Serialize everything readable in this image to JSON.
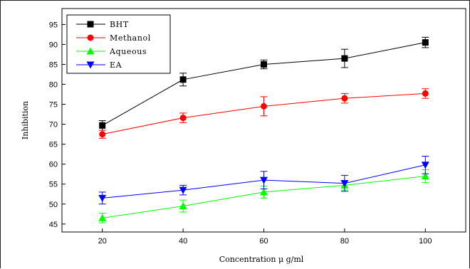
{
  "chart_data": {
    "type": "line",
    "title": "",
    "xlabel": "Concentration μ g/ml",
    "ylabel": "Inhibition",
    "x": [
      20,
      40,
      60,
      80,
      100
    ],
    "xlim": [
      10,
      110
    ],
    "ylim": [
      43,
      99
    ],
    "xticks": [
      "20",
      "40",
      "60",
      "80",
      "100"
    ],
    "yticks": [
      "45",
      "50",
      "55",
      "60",
      "65",
      "70",
      "75",
      "80",
      "85",
      "90",
      "95"
    ],
    "grid": false,
    "legend_position": "top-left",
    "series": [
      {
        "name": "BHT",
        "color": "#000000",
        "marker": "square",
        "values": [
          69.7,
          81.2,
          85.0,
          86.5,
          90.5
        ],
        "errors": [
          1.2,
          1.6,
          1.1,
          2.3,
          1.3
        ]
      },
      {
        "name": "Methanol",
        "color": "#ff0000",
        "marker": "circle",
        "values": [
          67.5,
          71.6,
          74.5,
          76.5,
          77.7
        ],
        "errors": [
          1.0,
          1.2,
          2.4,
          1.2,
          1.2
        ]
      },
      {
        "name": "Aqueous",
        "color": "#00ff00",
        "marker": "triangle-up",
        "values": [
          46.5,
          49.5,
          53.0,
          54.7,
          57.0
        ],
        "errors": [
          1.2,
          1.5,
          1.5,
          1.2,
          1.6
        ]
      },
      {
        "name": "EA",
        "color": "#0000ff",
        "marker": "triangle-down",
        "values": [
          51.5,
          53.5,
          56.0,
          55.2,
          59.8
        ],
        "errors": [
          1.5,
          1.2,
          2.2,
          2.0,
          2.2
        ]
      }
    ]
  }
}
